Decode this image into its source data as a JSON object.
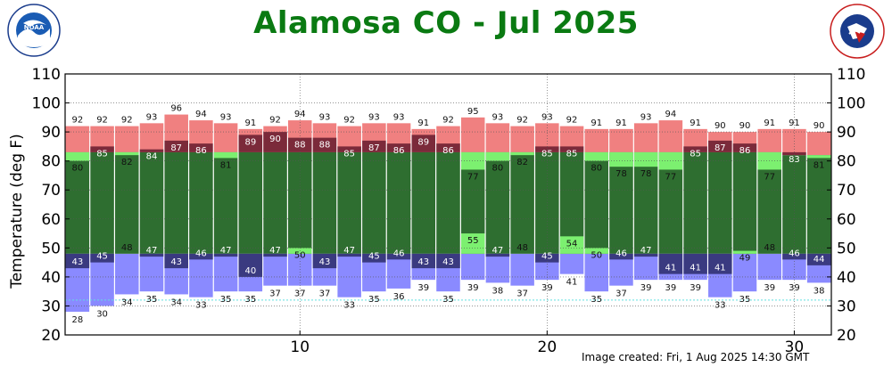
{
  "header": {
    "title": "Alamosa CO - Jul 2025",
    "noaa_logo_text": "NOAA",
    "noaa_ring_text": "NATIONAL OCEANIC AND ATMOSPHERIC ADMINISTRATION · U.S. DEPARTMENT OF COMMERCE",
    "nws_logo_text": "NATIONAL WEATHER SERVICE"
  },
  "footer": {
    "created": "Image created: Fri, 1 Aug 2025 14:30 GMT"
  },
  "colors": {
    "record_band": "#f08080",
    "above_normal_high": "#7b2a3a",
    "normal_band": "#2e6e30",
    "below_normal_high": "#7cf070",
    "below_normal_low": "#3a3a80",
    "normal_low_band": "#8a8aff",
    "ref_line": "#60e0e0",
    "title": "#0a7a12"
  },
  "chart_data": {
    "type": "bar",
    "title": "Alamosa CO - Jul 2025",
    "ylabel": "Temperature (deg F)",
    "xlabel": "",
    "ylim": [
      20,
      110
    ],
    "yticks": [
      20,
      30,
      40,
      50,
      60,
      70,
      80,
      90,
      100,
      110
    ],
    "xticks": [
      10,
      20,
      30
    ],
    "xlim": [
      0.5,
      31.5
    ],
    "grid_x": true,
    "grid_y": true,
    "days": [
      1,
      2,
      3,
      4,
      5,
      6,
      7,
      8,
      9,
      10,
      11,
      12,
      13,
      14,
      15,
      16,
      17,
      18,
      19,
      20,
      21,
      22,
      23,
      24,
      25,
      26,
      27,
      28,
      29,
      30,
      31
    ],
    "series": [
      {
        "name": "Observed High",
        "values": [
          80,
          85,
          82,
          84,
          87,
          86,
          81,
          89,
          90,
          88,
          88,
          85,
          87,
          86,
          89,
          86,
          77,
          80,
          82,
          85,
          85,
          80,
          78,
          78,
          77,
          85,
          87,
          86,
          77,
          83,
          81
        ]
      },
      {
        "name": "Observed Low",
        "values": [
          43,
          45,
          48,
          47,
          43,
          46,
          47,
          40,
          47,
          50,
          43,
          47,
          45,
          46,
          43,
          43,
          55,
          47,
          48,
          45,
          54,
          50,
          46,
          47,
          41,
          41,
          41,
          49,
          48,
          46,
          44
        ]
      },
      {
        "name": "Record High",
        "values": [
          92,
          92,
          92,
          93,
          96,
          94,
          93,
          91,
          92,
          94,
          93,
          92,
          93,
          93,
          91,
          92,
          95,
          93,
          92,
          93,
          92,
          91,
          91,
          93,
          94,
          91,
          90,
          90,
          91,
          91,
          90
        ]
      },
      {
        "name": "Record Low",
        "values": [
          28,
          30,
          34,
          35,
          34,
          33,
          35,
          35,
          37,
          37,
          37,
          33,
          35,
          36,
          39,
          35,
          39,
          38,
          37,
          39,
          41,
          35,
          37,
          39,
          39,
          39,
          33,
          35,
          39,
          39,
          38
        ]
      },
      {
        "name": "Normal High",
        "values": [
          83,
          83,
          83,
          83,
          83,
          83,
          83,
          83,
          83,
          83,
          83,
          83,
          83,
          83,
          83,
          83,
          83,
          83,
          83,
          83,
          83,
          83,
          83,
          83,
          83,
          83,
          83,
          83,
          83,
          82,
          82
        ]
      },
      {
        "name": "Normal Low",
        "values": [
          48,
          48,
          48,
          48,
          48,
          48,
          48,
          48,
          48,
          48,
          48,
          48,
          48,
          48,
          48,
          48,
          48,
          48,
          48,
          48,
          48,
          48,
          48,
          48,
          48,
          48,
          48,
          48,
          48,
          48,
          48
        ]
      }
    ],
    "ref_line_value": 32
  }
}
